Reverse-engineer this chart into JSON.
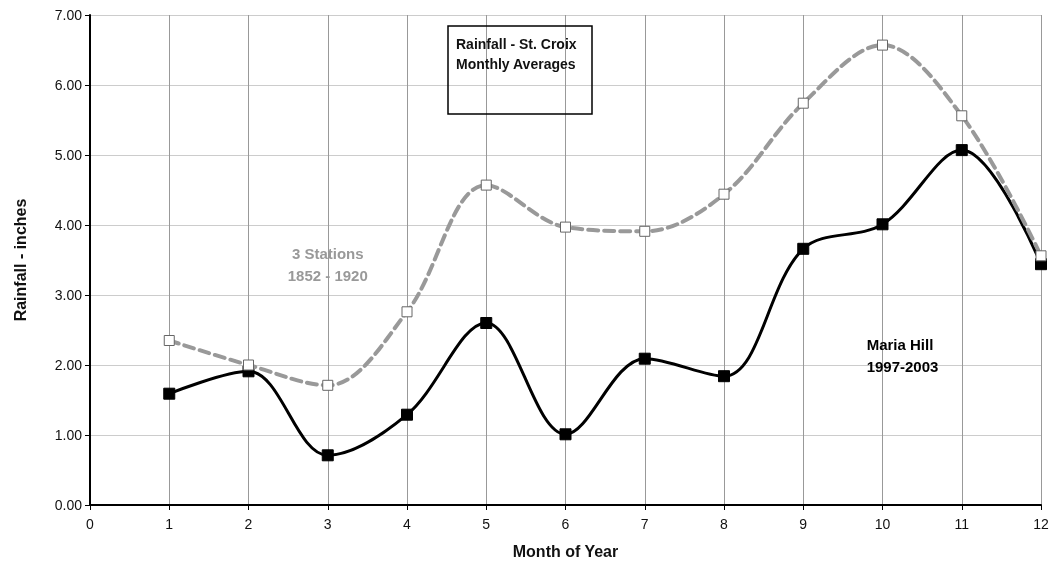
{
  "chart_data": {
    "type": "line",
    "title": "Rainfall - St. Croix\nMonthly Averages",
    "xlabel": "Month of Year",
    "ylabel": "Rainfall - inches",
    "x": [
      1,
      2,
      3,
      4,
      5,
      6,
      7,
      8,
      9,
      10,
      11,
      12
    ],
    "series": [
      {
        "name": "3 Stations\n1852 - 1920",
        "color": "#999999",
        "line_style": "dashed",
        "values": [
          2.35,
          2.0,
          1.71,
          2.76,
          4.57,
          3.97,
          3.91,
          4.44,
          5.74,
          6.57,
          5.56,
          3.56
        ]
      },
      {
        "name": "Maria Hill\n1997-2003",
        "color": "#000000",
        "line_style": "solid",
        "values": [
          1.59,
          1.91,
          0.71,
          1.29,
          2.6,
          1.01,
          2.09,
          1.84,
          3.66,
          4.01,
          5.07,
          3.44
        ]
      }
    ],
    "xlim": [
      0,
      12
    ],
    "xticks": [
      0,
      1,
      2,
      3,
      4,
      5,
      6,
      7,
      8,
      9,
      10,
      11,
      12
    ],
    "ylim": [
      0,
      7
    ],
    "yticks": [
      {
        "value": 0,
        "label": "0.00"
      },
      {
        "value": 1,
        "label": "1.00"
      },
      {
        "value": 2,
        "label": "2.00"
      },
      {
        "value": 3,
        "label": "3.00"
      },
      {
        "value": 4,
        "label": "4.00"
      },
      {
        "value": 5,
        "label": "5.00"
      },
      {
        "value": 6,
        "label": "6.00"
      },
      {
        "value": 7,
        "label": "7.00"
      }
    ],
    "grid": true,
    "marker": "square",
    "legend": false
  }
}
